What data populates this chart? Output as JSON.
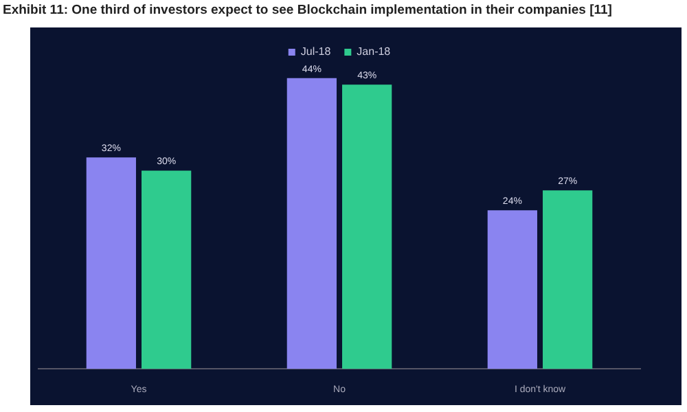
{
  "chart_data": {
    "type": "bar",
    "title": "Exhibit 11: One third of investors expect to see Blockchain implementation in their companies [11]",
    "categories": [
      "Yes",
      "No",
      "I don't know"
    ],
    "series": [
      {
        "name": "Jul-18",
        "color": "#8a84f0",
        "values": [
          32,
          44,
          24
        ],
        "value_labels": [
          "32%",
          "44%",
          "24%"
        ]
      },
      {
        "name": "Jan-18",
        "color": "#2fcb8e",
        "values": [
          30,
          43,
          27
        ],
        "value_labels": [
          "30%",
          "43%",
          "27%"
        ]
      }
    ],
    "legend": "top",
    "grid": false
  }
}
